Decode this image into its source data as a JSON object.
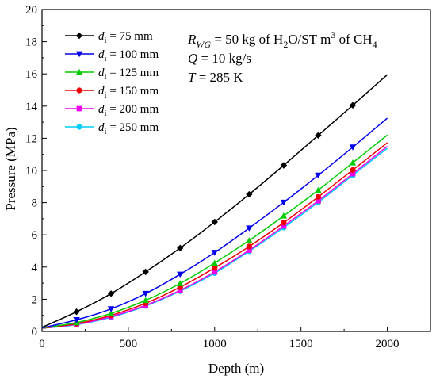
{
  "chart_data": {
    "type": "line",
    "xlabel": "Depth (m)",
    "ylabel": "Pressure (MPa)",
    "xlim": [
      0,
      2250
    ],
    "ylim": [
      0,
      20
    ],
    "xticks": [
      0,
      500,
      1000,
      1500,
      2000
    ],
    "yticks": [
      0,
      2,
      4,
      6,
      8,
      10,
      12,
      14,
      16,
      18,
      20
    ],
    "legend_position": "top-left",
    "grid": false,
    "series": [
      {
        "name_symbol": "d",
        "name_sub": "i",
        "name_rest": " = 75 mm",
        "color": "#000000",
        "marker": "diamond",
        "x": [
          0,
          200,
          400,
          600,
          800,
          1000,
          1200,
          1400,
          1600,
          1800,
          2000
        ],
        "y": [
          0.25,
          1.22,
          2.35,
          3.7,
          5.18,
          6.8,
          8.52,
          10.32,
          12.18,
          14.05,
          15.95
        ]
      },
      {
        "name_symbol": "d",
        "name_sub": "i",
        "name_rest": " = 100 mm",
        "color": "#0000ee",
        "marker": "triangle-down",
        "x": [
          0,
          200,
          400,
          600,
          800,
          1000,
          1200,
          1400,
          1600,
          1800,
          2000
        ],
        "y": [
          0.22,
          0.72,
          1.4,
          2.35,
          3.55,
          4.9,
          6.42,
          8.02,
          9.7,
          11.45,
          13.25
        ]
      },
      {
        "name_symbol": "d",
        "name_sub": "i",
        "name_rest": " = 125 mm",
        "color": "#00cc00",
        "marker": "triangle-up",
        "x": [
          0,
          200,
          400,
          600,
          800,
          1000,
          1200,
          1400,
          1600,
          1800,
          2000
        ],
        "y": [
          0.21,
          0.55,
          1.12,
          1.93,
          2.98,
          4.25,
          5.65,
          7.18,
          8.78,
          10.48,
          12.2
        ]
      },
      {
        "name_symbol": "d",
        "name_sub": "i",
        "name_rest": " = 150 mm",
        "color": "#ee0000",
        "marker": "circle",
        "x": [
          0,
          200,
          400,
          600,
          800,
          1000,
          1200,
          1400,
          1600,
          1800,
          2000
        ],
        "y": [
          0.2,
          0.48,
          1.0,
          1.75,
          2.75,
          3.95,
          5.28,
          6.76,
          8.36,
          10.03,
          11.72
        ]
      },
      {
        "name_symbol": "d",
        "name_sub": "i",
        "name_rest": " = 200 mm",
        "color": "#ee00ee",
        "marker": "square",
        "x": [
          0,
          200,
          400,
          600,
          800,
          1000,
          1200,
          1400,
          1600,
          1800,
          2000
        ],
        "y": [
          0.2,
          0.44,
          0.92,
          1.62,
          2.55,
          3.7,
          5.05,
          6.55,
          8.12,
          9.8,
          11.5
        ]
      },
      {
        "name_symbol": "d",
        "name_sub": "i",
        "name_rest": " = 250 mm",
        "color": "#00ccff",
        "marker": "circle",
        "x": [
          0,
          200,
          400,
          600,
          800,
          1000,
          1200,
          1400,
          1600,
          1800,
          2000
        ],
        "y": [
          0.2,
          0.42,
          0.88,
          1.58,
          2.5,
          3.62,
          4.98,
          6.45,
          8.02,
          9.7,
          11.38
        ]
      }
    ],
    "annotations": [
      {
        "parts": [
          [
            "R",
            "italic"
          ],
          [
            "WG",
            "sub-italic"
          ],
          [
            " = 50 kg of H",
            "normal"
          ],
          [
            "2",
            "sub"
          ],
          [
            "O/ST m",
            "normal"
          ],
          [
            "3",
            "sup"
          ],
          [
            " of CH",
            "normal"
          ],
          [
            "4",
            "sub"
          ]
        ]
      },
      {
        "parts": [
          [
            "Q",
            "italic"
          ],
          [
            " = 10 kg/s",
            "normal"
          ]
        ]
      },
      {
        "parts": [
          [
            "T",
            "italic"
          ],
          [
            " = 285 K",
            "normal"
          ]
        ]
      }
    ]
  }
}
